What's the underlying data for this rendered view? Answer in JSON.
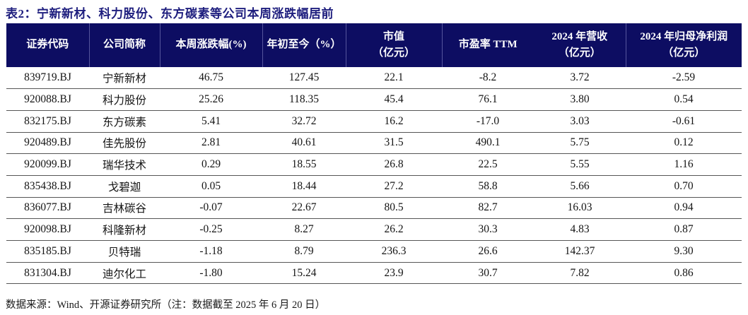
{
  "title": "表2：宁新新材、科力股份、东方碳素等公司本周涨跌幅居前",
  "table": {
    "columns": [
      [
        "证券代码"
      ],
      [
        "公司简称"
      ],
      [
        "本周涨跌幅(%)"
      ],
      [
        "年初至今（%）"
      ],
      [
        "市值",
        "（亿元）"
      ],
      [
        "市盈率 TTM"
      ],
      [
        "2024 年营收",
        "（亿元）"
      ],
      [
        "2024 年归母净利润",
        "（亿元）"
      ]
    ],
    "header_separators_after": [
      0,
      1,
      2,
      3,
      4,
      6
    ],
    "rows": [
      [
        "839719.BJ",
        "宁新新材",
        "46.75",
        "127.45",
        "22.1",
        "-8.2",
        "3.72",
        "-2.59"
      ],
      [
        "920088.BJ",
        "科力股份",
        "25.26",
        "118.35",
        "45.4",
        "76.1",
        "3.80",
        "0.54"
      ],
      [
        "832175.BJ",
        "东方碳素",
        "5.41",
        "32.72",
        "16.2",
        "-17.0",
        "3.03",
        "-0.61"
      ],
      [
        "920489.BJ",
        "佳先股份",
        "2.81",
        "40.61",
        "31.5",
        "490.1",
        "5.75",
        "0.12"
      ],
      [
        "920099.BJ",
        "瑞华技术",
        "0.29",
        "18.55",
        "26.8",
        "22.5",
        "5.55",
        "1.16"
      ],
      [
        "835438.BJ",
        "戈碧迦",
        "0.05",
        "18.44",
        "27.2",
        "58.8",
        "5.66",
        "0.70"
      ],
      [
        "836077.BJ",
        "吉林碳谷",
        "-0.07",
        "22.67",
        "80.5",
        "82.7",
        "16.03",
        "0.94"
      ],
      [
        "920098.BJ",
        "科隆新材",
        "-0.25",
        "8.27",
        "26.2",
        "30.3",
        "4.83",
        "0.87"
      ],
      [
        "835185.BJ",
        "贝特瑞",
        "-1.18",
        "8.79",
        "236.3",
        "26.6",
        "142.37",
        "9.30"
      ],
      [
        "831304.BJ",
        "迪尔化工",
        "-1.80",
        "15.24",
        "23.9",
        "30.7",
        "7.82",
        "0.86"
      ]
    ]
  },
  "footer": {
    "source_note": "数据来源：Wind、开源证券研究所（注：数据截至 2025 年 6 月 20 日）"
  },
  "colors": {
    "header_bg": "#0d0d62",
    "header_text": "#ffffff",
    "header_separator": "#55559c",
    "title_text": "#1e1e7e",
    "row_line": "#565656",
    "body_text": "#141414"
  }
}
